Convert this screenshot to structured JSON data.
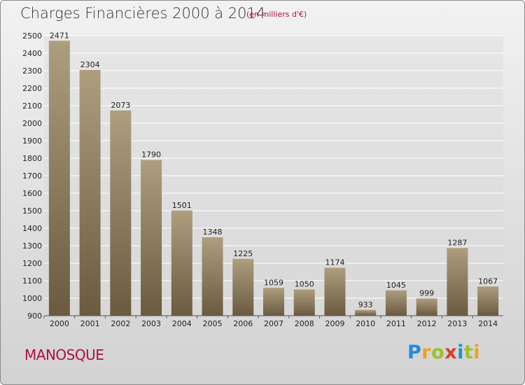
{
  "header": {
    "title": "Charges Financières 2000 à 2014",
    "subtitle": "(en milliers d'€)"
  },
  "footer": {
    "town": "MANOSQUE",
    "logo": "Proxiti"
  },
  "colors": {
    "bar_light": "#ad9e7e",
    "bar_dark": "#6a5a40",
    "title": "#333333",
    "accent": "#b0103e"
  },
  "chart_data": {
    "type": "bar",
    "title": "Charges Financières 2000 à 2014",
    "subtitle": "(en milliers d'€)",
    "xlabel": "",
    "ylabel": "",
    "categories": [
      "2000",
      "2001",
      "2002",
      "2003",
      "2004",
      "2005",
      "2006",
      "2007",
      "2008",
      "2009",
      "2010",
      "2011",
      "2012",
      "2013",
      "2014"
    ],
    "values": [
      2471,
      2304,
      2073,
      1790,
      1501,
      1348,
      1225,
      1059,
      1050,
      1174,
      933,
      1045,
      999,
      1287,
      1067
    ],
    "ylim": [
      900,
      2500
    ],
    "yticks": [
      900,
      1000,
      1100,
      1200,
      1300,
      1400,
      1500,
      1600,
      1700,
      1800,
      1900,
      2000,
      2100,
      2200,
      2300,
      2400,
      2500
    ],
    "grid": true,
    "legend": "none"
  }
}
